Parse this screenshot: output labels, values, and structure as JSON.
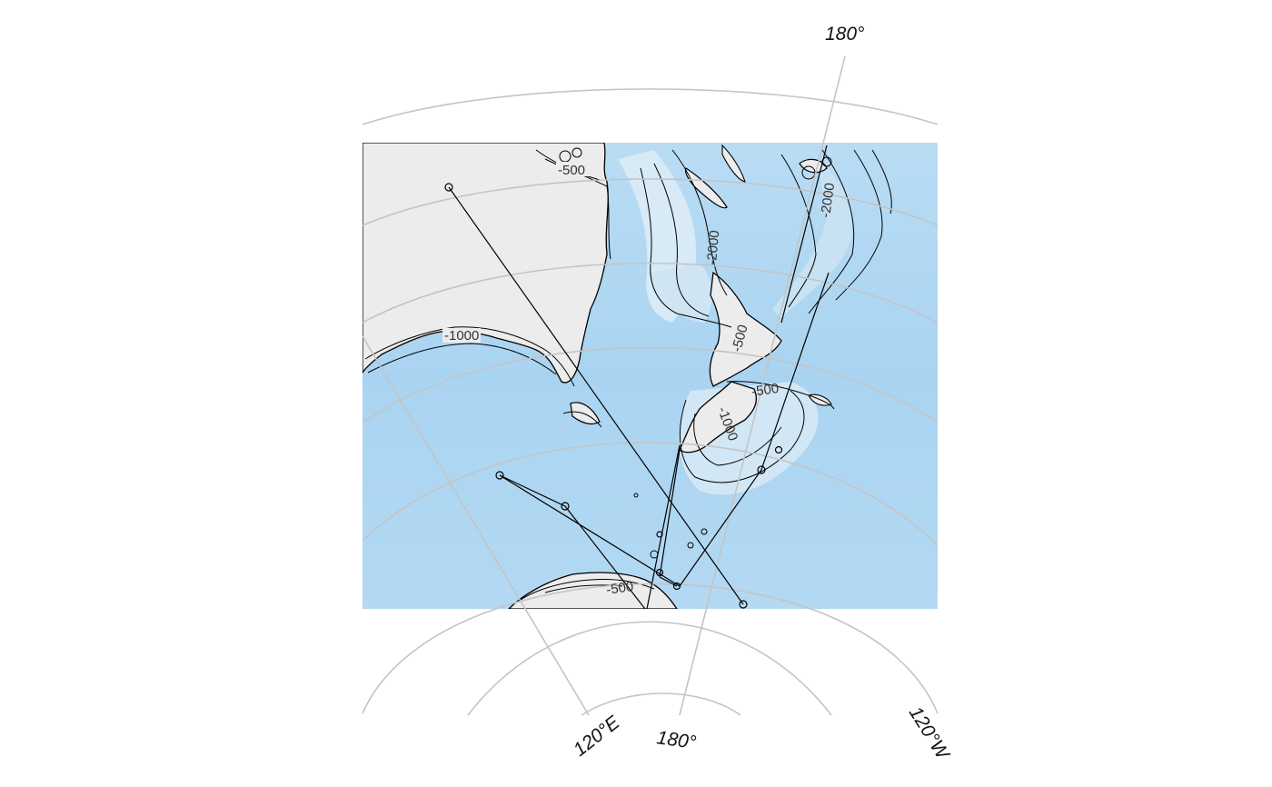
{
  "map": {
    "colors": {
      "ocean_deep": "#a7d3f2",
      "ocean_shallow": "#dcecf7",
      "land": "#ececec",
      "graticule": "#c4c4c4",
      "contour": "#000000",
      "track": "#000000"
    },
    "axis_labels": {
      "top_meridian": "180°",
      "bottom_120e": "120°E",
      "bottom_180": "180°",
      "bottom_120w": "120°W"
    },
    "contour_labels": [
      {
        "id": "c500_top",
        "text": "-500"
      },
      {
        "id": "c2000_right",
        "text": "-2000"
      },
      {
        "id": "c2000_mid",
        "text": "-2000"
      },
      {
        "id": "c1000_aus",
        "text": "-1000"
      },
      {
        "id": "c500_nz",
        "text": "-500"
      },
      {
        "id": "c1000_nz",
        "text": "-1000"
      },
      {
        "id": "c500_nz_s",
        "text": "-500"
      },
      {
        "id": "c500_ant",
        "text": "-500"
      }
    ]
  }
}
